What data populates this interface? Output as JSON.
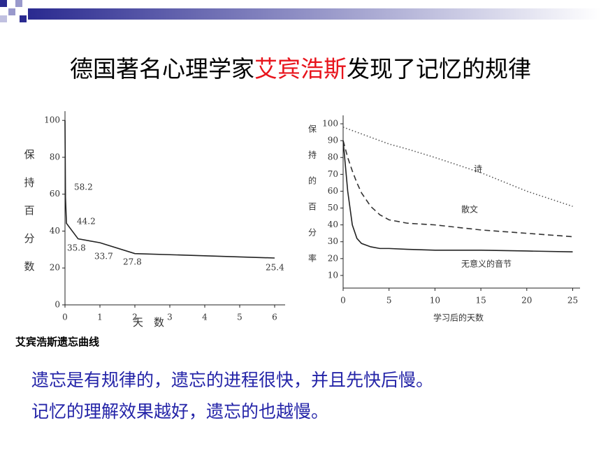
{
  "slide": {
    "title_parts": [
      "德国著名心理学家",
      "艾宾浩斯",
      "发现了记忆的规律"
    ],
    "title_highlight_color": "#e8141c",
    "body": [
      "遗忘是有规律的，遗忘的进程很快，并且先快后慢。",
      "记忆的理解效果越好，遗忘的也越慢。"
    ]
  },
  "chart_data": [
    {
      "type": "line",
      "caption": "艾宾浩斯遗忘曲线",
      "x_label": "天　数",
      "y_label": "保持百分数",
      "x": [
        0,
        0.014,
        0.042,
        0.375,
        1,
        2,
        6
      ],
      "values": [
        100,
        58.2,
        44.2,
        35.8,
        33.7,
        27.8,
        25.4
      ],
      "color": "#222222",
      "xlim": [
        0,
        6.3
      ],
      "ylim": [
        0,
        105
      ],
      "xticks": [
        0,
        1,
        2,
        3,
        4,
        5,
        6
      ],
      "yticks": [
        0,
        20,
        40,
        60,
        80,
        100
      ]
    },
    {
      "type": "line",
      "x_label": "学习后的天数",
      "y_label": "保持的百分率",
      "x": [
        0,
        0.5,
        1,
        1.5,
        2,
        3,
        4,
        5,
        7,
        10,
        15,
        20,
        25
      ],
      "series": [
        {
          "name": "诗",
          "color": "#555555",
          "style": "dotted",
          "values": [
            98,
            97,
            96,
            95,
            94,
            92,
            90,
            88,
            85,
            80,
            71,
            60,
            51
          ]
        },
        {
          "name": "散文",
          "color": "#333333",
          "style": "dashed",
          "values": [
            90,
            80,
            72,
            65,
            59,
            51,
            46,
            43,
            41,
            40,
            37,
            35,
            33
          ]
        },
        {
          "name": "无意义的音节",
          "color": "#222222",
          "style": "solid",
          "values": [
            90,
            60,
            40,
            32,
            29,
            27,
            26,
            26,
            25.5,
            25,
            25,
            24.5,
            24
          ]
        }
      ],
      "xlim": [
        0,
        25.8
      ],
      "ylim": [
        2.5,
        105
      ],
      "xticks": [
        0,
        5,
        10,
        15,
        20,
        25
      ],
      "yticks": [
        10,
        20,
        30,
        40,
        50,
        60,
        70,
        80,
        90,
        100
      ]
    }
  ]
}
